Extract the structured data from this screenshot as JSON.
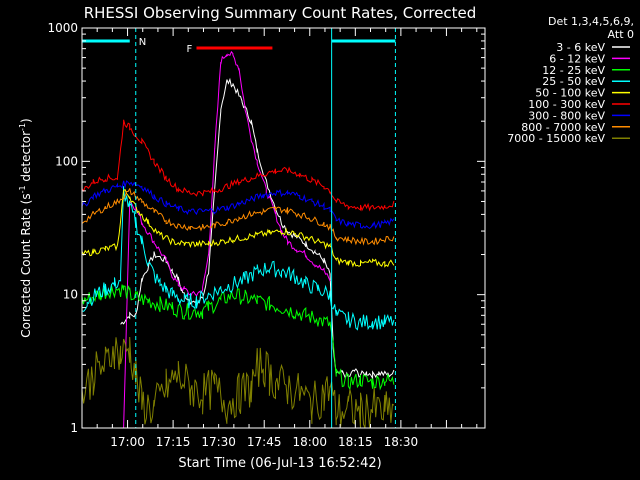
{
  "chart_data": {
    "type": "line",
    "title": "RHESSI Observing Summary Count Rates, Corrected",
    "xlabel": "Start Time (06-Jul-13 16:52:42)",
    "ylabel": "Corrected Count Rate (s",
    "ylabel_sup": "-1",
    "ylabel_mid": " detector",
    "ylabel_sup2": "-1",
    "ylabel_end": ")",
    "yscale": "log",
    "ylim": [
      1,
      1000
    ],
    "xlim_min": [
      -7.7,
      125.0
    ],
    "x_tick_labels": [
      {
        "min": 7.3,
        "label": "17:00"
      },
      {
        "min": 22.3,
        "label": "17:15"
      },
      {
        "min": 37.3,
        "label": "17:30"
      },
      {
        "min": 52.3,
        "label": "17:45"
      },
      {
        "min": 67.3,
        "label": "18:00"
      },
      {
        "min": 82.3,
        "label": "18:15"
      },
      {
        "min": 97.3,
        "label": "18:30"
      }
    ],
    "y_tick_labels": [
      {
        "value": 1,
        "label": "1"
      },
      {
        "value": 10,
        "label": "10"
      },
      {
        "value": 100,
        "label": "100"
      },
      {
        "value": 1000,
        "label": "1000"
      }
    ],
    "legend": {
      "position": "right",
      "header1": "Det 1,3,4,5,6,9,",
      "header2": "Att 0"
    },
    "annotations": {
      "night_label": "N",
      "flare_label": "F",
      "night_start_min": 10.0,
      "day_return_min": 74.5,
      "attenuator_end_min": 95.5,
      "flare_start_min": 30.0,
      "flare_end_min": 55.0,
      "flare_level": 650
    },
    "series": [
      {
        "name": "3 - 6 keV",
        "color": "#ffffff",
        "x": [
          -7.7,
          2,
          4,
          5,
          8,
          10,
          12,
          16,
          20,
          22,
          24,
          25,
          26,
          28,
          30,
          31,
          32,
          34,
          36,
          38,
          40,
          42,
          45,
          48,
          50,
          53,
          56,
          58,
          60,
          63,
          66,
          69,
          72,
          74,
          75,
          76,
          78,
          80,
          82,
          84,
          86,
          88,
          90,
          93,
          95
        ],
        "y": [
          null,
          null,
          null,
          6,
          7,
          7,
          13,
          20,
          18,
          15,
          13,
          11,
          10,
          9,
          8.5,
          9,
          9.5,
          15,
          60,
          250,
          400,
          380,
          280,
          200,
          120,
          70,
          45,
          35,
          30,
          27,
          24,
          21,
          18,
          14,
          4,
          2.5,
          2.6,
          2.4,
          2.7,
          2.5,
          2.6,
          2.5,
          2.6,
          2.5,
          2.6
        ]
      },
      {
        "name": "6 - 12 keV",
        "color": "#ff00ff",
        "x": [
          -7.7,
          5,
          6,
          8,
          10,
          12,
          16,
          20,
          22,
          24,
          26,
          28,
          30,
          32,
          34,
          36,
          38,
          40,
          42,
          44,
          46,
          48,
          50,
          53,
          56,
          58,
          60,
          63,
          66,
          69,
          72,
          74
        ],
        "y": [
          null,
          null,
          1,
          50,
          45,
          35,
          25,
          18,
          14,
          12,
          11,
          10,
          10,
          11,
          20,
          120,
          560,
          650,
          620,
          500,
          250,
          150,
          100,
          60,
          40,
          30,
          25,
          22,
          20,
          17,
          15,
          13
        ]
      },
      {
        "name": "12 - 25 keV",
        "color": "#00ff00",
        "x": [
          -7.7,
          -2,
          2,
          6,
          8,
          10,
          14,
          18,
          22,
          26,
          30,
          32,
          34,
          38,
          42,
          46,
          50,
          54,
          58,
          62,
          66,
          70,
          74,
          76,
          80,
          84,
          88,
          92,
          95
        ],
        "y": [
          9,
          10,
          11,
          11,
          10,
          9.5,
          9,
          8.5,
          8,
          7.5,
          7.5,
          7.5,
          8,
          9,
          10,
          9.5,
          9,
          8.5,
          8,
          7.5,
          7,
          6.5,
          6,
          2.5,
          2.2,
          2.3,
          2.2,
          2.3,
          2.2
        ]
      },
      {
        "name": "25 - 50 keV",
        "color": "#00ffff",
        "x": [
          -7.7,
          -6,
          -3,
          0,
          3,
          5,
          6,
          8,
          10,
          12,
          14,
          16,
          18,
          20,
          22,
          24,
          26,
          28,
          30,
          34,
          38,
          42,
          46,
          50,
          54,
          58,
          62,
          66,
          70,
          74,
          76,
          80,
          84,
          88,
          92,
          95
        ],
        "y": [
          8,
          9,
          10,
          11,
          12,
          13,
          60,
          45,
          35,
          25,
          18,
          14,
          12,
          11,
          10,
          9.5,
          9,
          9,
          9,
          10,
          11,
          12,
          13,
          15,
          16,
          15,
          14,
          12,
          11,
          10,
          7,
          6.5,
          6.2,
          6.3,
          6.2,
          6.3
        ]
      },
      {
        "name": "50 - 100 keV",
        "color": "#ffff00",
        "x": [
          -7.7,
          -4,
          0,
          4,
          6,
          8,
          10,
          14,
          18,
          22,
          26,
          30,
          34,
          38,
          42,
          46,
          50,
          54,
          58,
          62,
          66,
          70,
          74,
          76,
          80,
          84,
          88,
          92,
          95
        ],
        "y": [
          20,
          21,
          22,
          23,
          60,
          55,
          45,
          35,
          28,
          25,
          24,
          24,
          24,
          25,
          26,
          27,
          28,
          29,
          30,
          29,
          27,
          25,
          23,
          18,
          17.5,
          17,
          17.5,
          17,
          17.5
        ]
      },
      {
        "name": "100 - 300 keV",
        "color": "#ff0000",
        "x": [
          -7.7,
          -4,
          0,
          4,
          6,
          8,
          12,
          16,
          20,
          24,
          28,
          32,
          36,
          40,
          44,
          48,
          52,
          56,
          60,
          64,
          68,
          72,
          74,
          76,
          80,
          84,
          88,
          92,
          95
        ],
        "y": [
          60,
          70,
          75,
          75,
          200,
          180,
          140,
          100,
          75,
          62,
          58,
          58,
          60,
          65,
          70,
          75,
          80,
          85,
          85,
          80,
          72,
          65,
          60,
          50,
          46,
          45,
          45,
          46,
          48
        ]
      },
      {
        "name": "300 - 800 keV",
        "color": "#0000ff",
        "x": [
          -7.7,
          -4,
          0,
          4,
          8,
          12,
          16,
          20,
          24,
          28,
          32,
          36,
          40,
          44,
          48,
          52,
          56,
          60,
          64,
          68,
          72,
          74,
          76,
          80,
          84,
          88,
          92,
          95
        ],
        "y": [
          45,
          55,
          60,
          65,
          70,
          65,
          55,
          48,
          44,
          42,
          42,
          43,
          45,
          48,
          52,
          56,
          58,
          58,
          55,
          50,
          46,
          43,
          36,
          34,
          33,
          33,
          34,
          36
        ]
      },
      {
        "name": "800 - 7000 keV",
        "color": "#ff8c00",
        "x": [
          -7.7,
          -4,
          0,
          4,
          8,
          12,
          16,
          20,
          24,
          28,
          32,
          36,
          40,
          44,
          48,
          52,
          56,
          60,
          64,
          68,
          72,
          74,
          76,
          80,
          84,
          88,
          92,
          95
        ],
        "y": [
          35,
          40,
          45,
          50,
          60,
          50,
          42,
          36,
          33,
          32,
          32,
          33,
          35,
          38,
          40,
          42,
          44,
          43,
          40,
          37,
          34,
          32,
          27,
          26,
          25,
          25,
          26,
          27
        ]
      },
      {
        "name": "7000 - 15000 keV",
        "color": "#808000",
        "x": [
          -7.7,
          -4,
          0,
          3,
          5,
          8,
          10,
          12,
          16,
          20,
          24,
          28,
          32,
          36,
          40,
          44,
          48,
          50,
          52,
          54,
          56,
          60,
          64,
          68,
          72,
          74,
          76,
          80,
          84,
          88,
          92,
          95
        ],
        "y": [
          1.8,
          2.5,
          3,
          4,
          3.5,
          4,
          2.5,
          1.5,
          1.4,
          2,
          2.5,
          2,
          1.8,
          2,
          1.5,
          1.8,
          2,
          2.8,
          3,
          2.5,
          2.2,
          2,
          1.8,
          1.5,
          1.8,
          2,
          1.3,
          1.4,
          1.3,
          1.4,
          1.3,
          1.4
        ]
      }
    ]
  }
}
